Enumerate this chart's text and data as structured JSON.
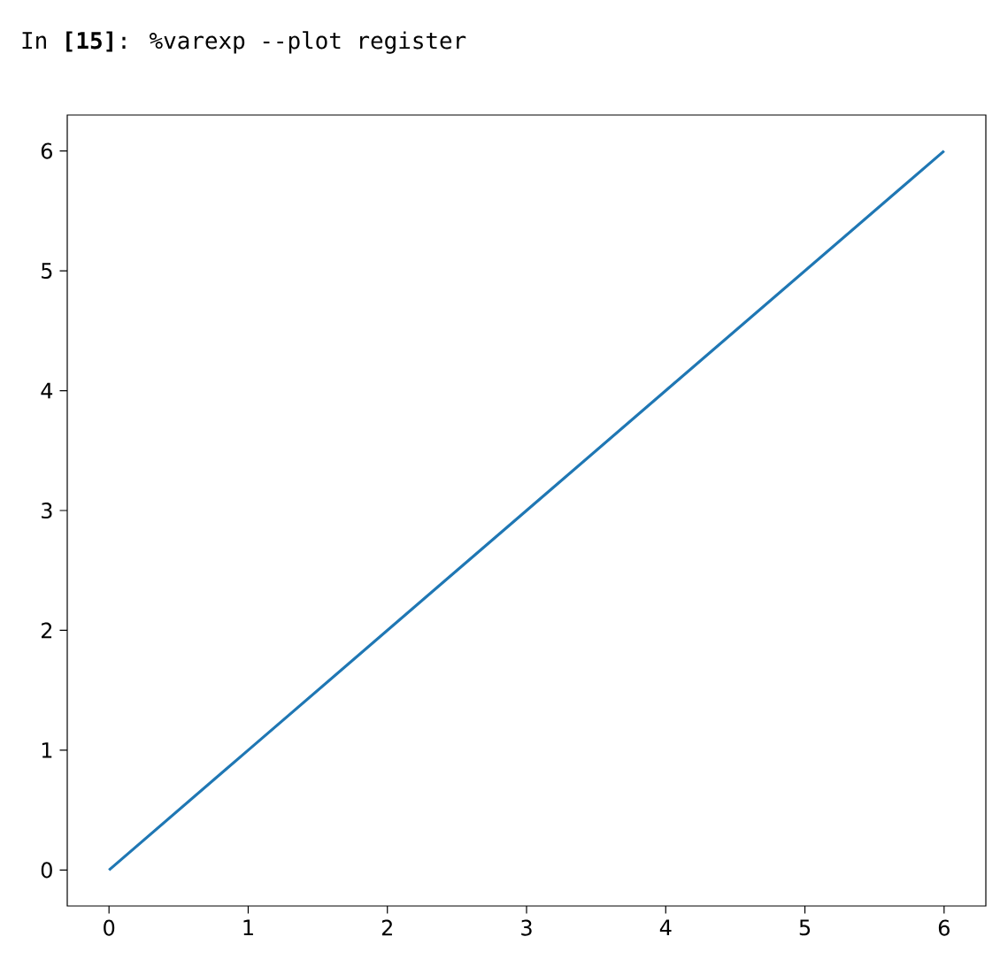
{
  "chart_data": {
    "type": "line",
    "title": "In **[15]**: %varexp --plot register",
    "x": [
      0,
      1,
      2,
      3,
      4,
      5,
      6
    ],
    "series": [
      {
        "color": "#1f77b4",
        "values": [
          0,
          1,
          2,
          3,
          4,
          5,
          6
        ]
      }
    ],
    "xlim": [
      -0.3,
      6.3
    ],
    "ylim": [
      -0.3,
      6.3
    ],
    "xticks": [
      0,
      1,
      2,
      3,
      4,
      5,
      6
    ],
    "yticks": [
      0,
      1,
      2,
      3,
      4,
      5,
      6
    ]
  }
}
